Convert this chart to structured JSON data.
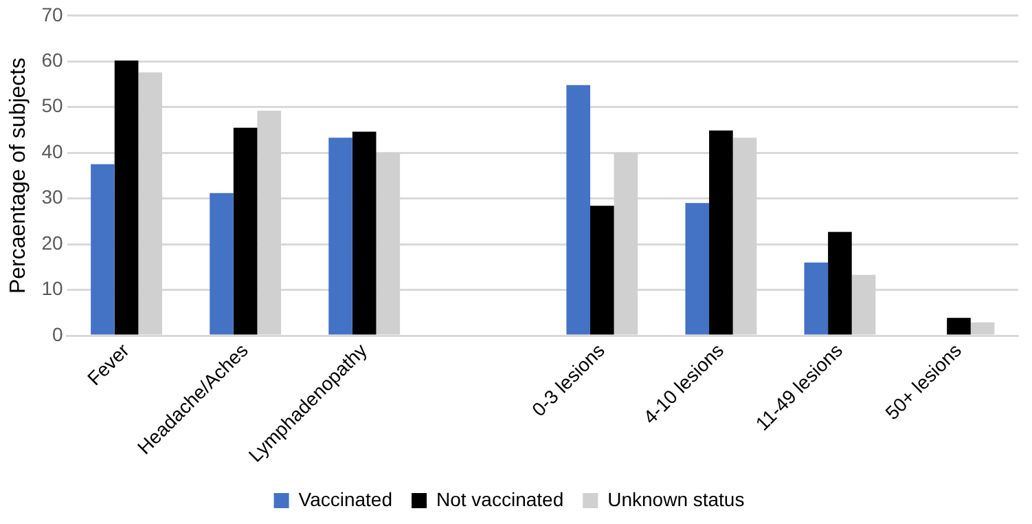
{
  "chart_data": {
    "type": "bar",
    "ylabel": "Percaentage of subjects",
    "categories": [
      "Fever",
      "Headache/Aches",
      "Lymphadenopathy",
      null,
      "0-3 lesions",
      "4-10 lesions",
      "11-49 lesions",
      "50+ lesions"
    ],
    "series": [
      {
        "name": "Vaccinated",
        "color": "#4472c4",
        "values": [
          37.5,
          31.2,
          43.3,
          null,
          54.8,
          29.0,
          16.0,
          0
        ]
      },
      {
        "name": "Not vaccinated",
        "color": "#000000",
        "values": [
          60.2,
          45.5,
          44.6,
          null,
          28.4,
          44.9,
          22.7,
          3.9
        ]
      },
      {
        "name": "Unknown status",
        "color": "#d0d0d0",
        "values": [
          57.6,
          49.2,
          40.0,
          null,
          40.0,
          43.3,
          13.3,
          2.9
        ]
      }
    ],
    "ylim": [
      0,
      70
    ],
    "yticks": [
      0,
      10,
      20,
      30,
      40,
      50,
      60,
      70
    ],
    "grid": "y",
    "legend": "bottom"
  }
}
